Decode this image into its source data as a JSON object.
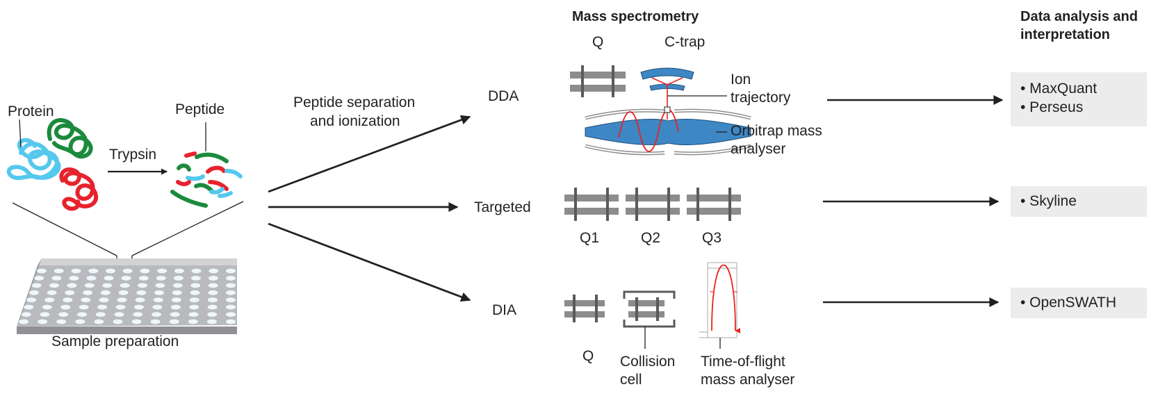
{
  "labels": {
    "protein": "Protein",
    "peptide": "Peptide",
    "trypsin": "Trypsin",
    "sample_preparation": "Sample preparation",
    "separation_line1": "Peptide separation",
    "separation_line2": "and ionization",
    "dda": "DDA",
    "targeted": "Targeted",
    "dia": "DIA"
  },
  "mass_spectrometry": {
    "title": "Mass spectrometry",
    "dda": {
      "q": "Q",
      "c_trap": "C-trap",
      "ion_line1": "Ion",
      "ion_line2": "trajectory",
      "orbitrap_line1": "Orbitrap mass",
      "orbitrap_line2": "analyser"
    },
    "targeted": {
      "q1": "Q1",
      "q2": "Q2",
      "q3": "Q3"
    },
    "dia": {
      "q": "Q",
      "collision_line1": "Collision",
      "collision_line2": "cell",
      "tof_line1": "Time-of-flight",
      "tof_line2": "mass analyser"
    }
  },
  "data_analysis": {
    "title_line1": "Data analysis and",
    "title_line2": "interpretation",
    "dda_tools": [
      "• MaxQuant",
      "• Perseus"
    ],
    "targeted_tools": [
      "• Skyline"
    ],
    "dia_tools": [
      "• OpenSWATH"
    ]
  },
  "colors": {
    "text": "#231f20",
    "protein_blue": "#55c8ee",
    "protein_green": "#1c8a3c",
    "protein_red": "#e6232d",
    "orbitrap_blue": "#3d87c4",
    "trajectory_red": "#e8221f",
    "rod_gray": "#8c8c8c",
    "plate_gray": "#a7a9ac",
    "tool_box": "#ececec"
  }
}
